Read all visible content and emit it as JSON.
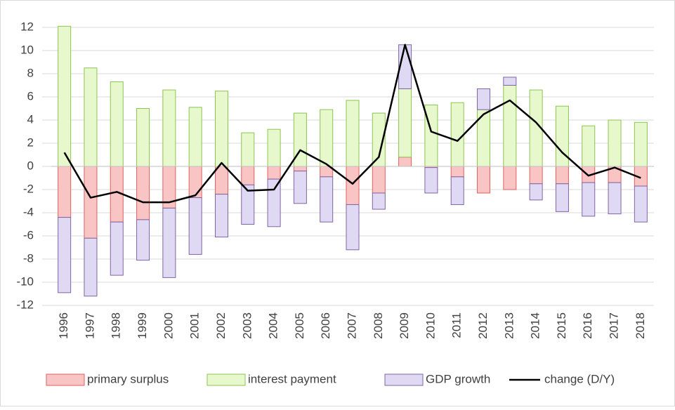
{
  "chart_data": {
    "type": "bar",
    "stacked": true,
    "categories": [
      "1996",
      "1997",
      "1998",
      "1999",
      "2000",
      "2001",
      "2002",
      "2003",
      "2004",
      "2005",
      "2006",
      "2007",
      "2008",
      "2009",
      "2010",
      "2011",
      "2012",
      "2013",
      "2014",
      "2015",
      "2016",
      "2017",
      "2018"
    ],
    "series": [
      {
        "name": "primary surplus",
        "color": "#f9c4c4",
        "stroke": "#e06060",
        "values": [
          -4.4,
          -6.2,
          -4.8,
          -4.6,
          -3.6,
          -2.7,
          -2.4,
          -1.6,
          -1.1,
          -0.4,
          -0.9,
          -3.3,
          -2.3,
          0.8,
          -0.1,
          -0.9,
          -2.3,
          -2.0,
          -1.5,
          -1.5,
          -1.4,
          -1.4,
          -1.7
        ]
      },
      {
        "name": "interest payment",
        "color": "#e6f8cc",
        "stroke": "#8cc450",
        "values": [
          12.1,
          8.5,
          7.3,
          5.0,
          6.6,
          5.1,
          6.5,
          2.9,
          3.2,
          4.6,
          4.9,
          5.7,
          4.6,
          5.9,
          5.3,
          5.5,
          4.9,
          7.0,
          6.6,
          5.2,
          3.5,
          4.0,
          3.8
        ]
      },
      {
        "name": "GDP growth",
        "color": "#e0d9f4",
        "stroke": "#8064a2",
        "values": [
          -6.5,
          -5.0,
          -4.6,
          -3.5,
          -6.0,
          -4.9,
          -3.7,
          -3.4,
          -4.1,
          -2.8,
          -3.9,
          -3.9,
          -1.4,
          3.8,
          -2.2,
          -2.4,
          1.8,
          0.7,
          -1.4,
          -2.4,
          -2.9,
          -2.7,
          -3.1
        ]
      },
      {
        "name": "change (D/Y)",
        "color": "#000000",
        "type": "line",
        "values": [
          1.2,
          -2.7,
          -2.2,
          -3.1,
          -3.1,
          -2.5,
          0.3,
          -2.1,
          -2.0,
          1.4,
          0.2,
          -1.5,
          0.8,
          10.5,
          3.0,
          2.2,
          4.5,
          5.7,
          3.8,
          1.2,
          -0.8,
          -0.1,
          -1.0
        ]
      }
    ],
    "ylim": [
      -12,
      12
    ],
    "yticks": [
      -12,
      -10,
      -8,
      -6,
      -4,
      -2,
      0,
      2,
      4,
      6,
      8,
      10,
      12
    ],
    "grid": true,
    "legend": "bottom"
  }
}
